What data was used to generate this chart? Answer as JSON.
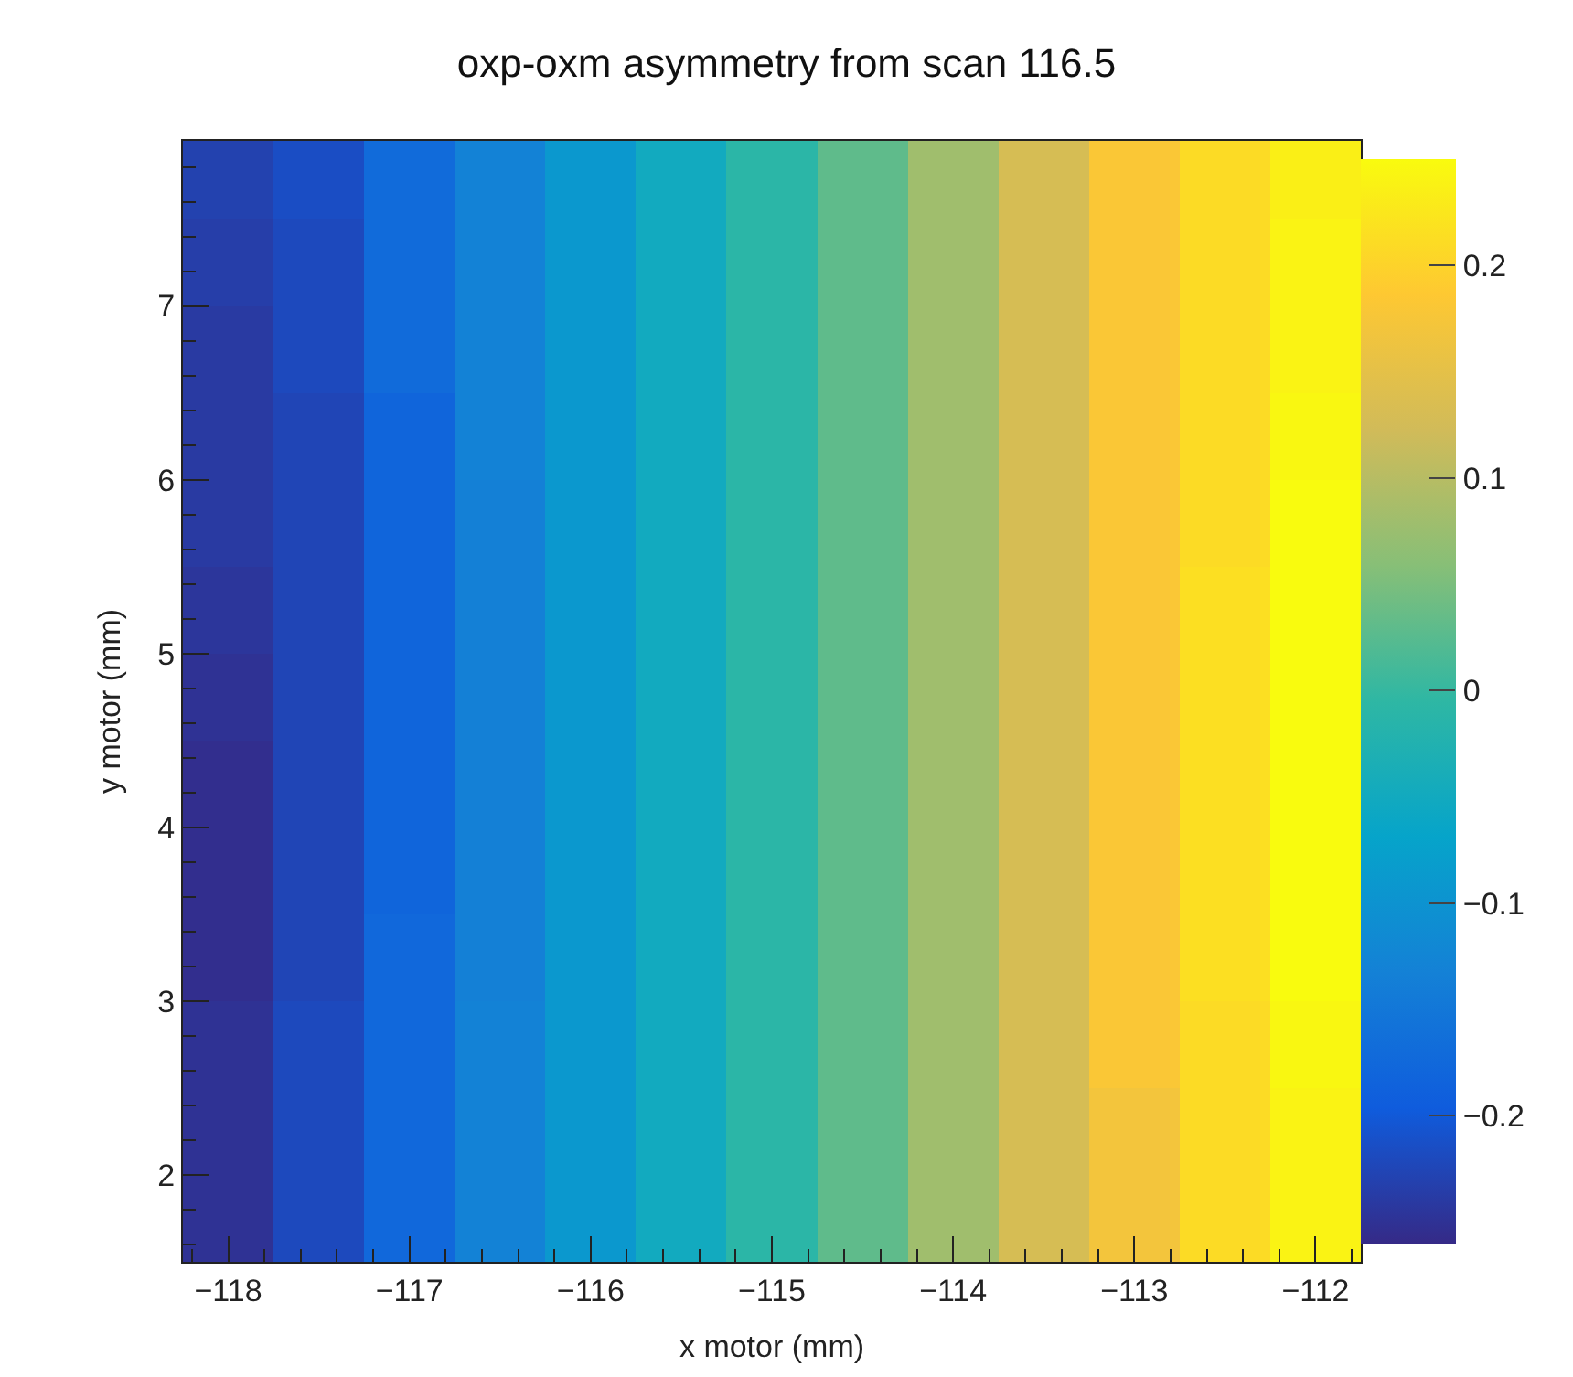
{
  "chart_data": {
    "type": "heatmap",
    "title": "oxp-oxm asymmetry from scan 116.5",
    "xlabel": "x motor (mm)",
    "ylabel": "y motor (mm)",
    "x": [
      -118,
      -117.5,
      -117,
      -116.5,
      -116,
      -115.5,
      -115,
      -114.5,
      -114,
      -113.5,
      -113,
      -112.5,
      -112
    ],
    "y": [
      7.75,
      7.25,
      6.75,
      6.25,
      5.75,
      5.25,
      4.75,
      4.25,
      3.75,
      3.25,
      2.75,
      2.25,
      1.75
    ],
    "cells": [
      [
        -0.23,
        -0.215,
        -0.17,
        -0.13,
        -0.09,
        -0.05,
        -0.01,
        0.03,
        0.08,
        0.13,
        0.18,
        0.21,
        0.235
      ],
      [
        -0.235,
        -0.22,
        -0.17,
        -0.13,
        -0.09,
        -0.05,
        -0.01,
        0.03,
        0.08,
        0.13,
        0.18,
        0.21,
        0.24
      ],
      [
        -0.24,
        -0.22,
        -0.17,
        -0.13,
        -0.09,
        -0.05,
        -0.01,
        0.03,
        0.08,
        0.13,
        0.18,
        0.21,
        0.24
      ],
      [
        -0.24,
        -0.225,
        -0.18,
        -0.13,
        -0.09,
        -0.05,
        -0.01,
        0.03,
        0.08,
        0.13,
        0.18,
        0.21,
        0.245
      ],
      [
        -0.24,
        -0.225,
        -0.18,
        -0.135,
        -0.09,
        -0.05,
        -0.01,
        0.03,
        0.08,
        0.13,
        0.18,
        0.21,
        0.25
      ],
      [
        -0.245,
        -0.225,
        -0.18,
        -0.135,
        -0.09,
        -0.05,
        -0.01,
        0.03,
        0.08,
        0.13,
        0.18,
        0.215,
        0.25
      ],
      [
        -0.25,
        -0.225,
        -0.18,
        -0.135,
        -0.09,
        -0.05,
        -0.01,
        0.03,
        0.08,
        0.13,
        0.18,
        0.215,
        0.25
      ],
      [
        -0.255,
        -0.225,
        -0.18,
        -0.135,
        -0.09,
        -0.05,
        -0.01,
        0.03,
        0.08,
        0.13,
        0.18,
        0.215,
        0.25
      ],
      [
        -0.255,
        -0.225,
        -0.18,
        -0.135,
        -0.09,
        -0.05,
        -0.01,
        0.03,
        0.08,
        0.13,
        0.18,
        0.215,
        0.25
      ],
      [
        -0.255,
        -0.225,
        -0.175,
        -0.135,
        -0.09,
        -0.05,
        -0.01,
        0.03,
        0.08,
        0.13,
        0.18,
        0.215,
        0.25
      ],
      [
        -0.25,
        -0.22,
        -0.175,
        -0.13,
        -0.09,
        -0.05,
        -0.01,
        0.03,
        0.08,
        0.13,
        0.18,
        0.21,
        0.245
      ],
      [
        -0.25,
        -0.22,
        -0.175,
        -0.13,
        -0.09,
        -0.05,
        -0.01,
        0.03,
        0.08,
        0.13,
        0.17,
        0.21,
        0.24
      ],
      [
        -0.25,
        -0.22,
        -0.175,
        -0.13,
        -0.09,
        -0.05,
        -0.01,
        0.03,
        0.08,
        0.13,
        0.17,
        0.21,
        0.24
      ]
    ],
    "xlim": [
      -118.25,
      -111.75
    ],
    "xticks": [
      -118,
      -117,
      -116,
      -115,
      -114,
      -113,
      -112
    ],
    "ylim": [
      1.5,
      7.95
    ],
    "yticks": [
      2,
      3,
      4,
      5,
      6,
      7
    ],
    "clim": [
      -0.26,
      0.25
    ],
    "cticks": [
      -0.2,
      -0.1,
      0,
      0.1,
      0.2
    ]
  }
}
